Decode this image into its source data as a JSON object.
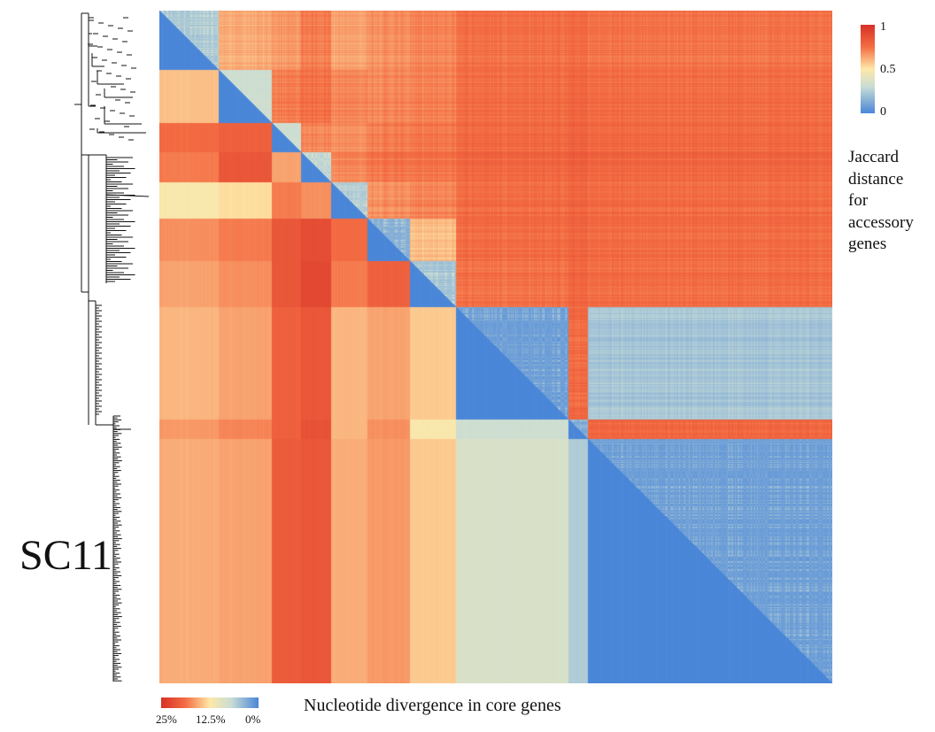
{
  "chart_data": {
    "type": "heatmap",
    "title": "",
    "clade_label": "SC11",
    "upper_triangle": {
      "metric": "Jaccard distance for accessory genes",
      "legend_title_lines": [
        "Jaccard",
        "distance",
        "for",
        "accessory",
        "genes"
      ],
      "legend_ticks": [
        "1",
        "0.5",
        "0"
      ],
      "range": [
        0,
        1
      ]
    },
    "lower_triangle": {
      "metric": "Nucleotide divergence in core genes",
      "legend_title": "Nucleotide divergence in core genes",
      "legend_ticks": [
        "25%",
        "12.5%",
        "0%"
      ],
      "range": [
        0,
        25
      ]
    },
    "clusters": [
      {
        "size": 0.09,
        "core_div": [
          0,
          14.5,
          19,
          18,
          12,
          17,
          16,
          15,
          16.5,
          15.5
        ],
        "acc_dist": [
          0.2,
          0.62,
          0.66,
          0.72,
          0.64,
          0.68,
          0.7,
          0.75,
          0.76,
          0.74
        ]
      },
      {
        "size": 0.08,
        "core_div": [
          14.5,
          0,
          20,
          21,
          13,
          18,
          17,
          16,
          17.5,
          16
        ],
        "acc_dist": [
          0.62,
          0.3,
          0.72,
          0.75,
          0.7,
          0.7,
          0.71,
          0.76,
          0.78,
          0.76
        ]
      },
      {
        "size": 0.045,
        "core_div": [
          19,
          20,
          0,
          16,
          18,
          21,
          21,
          20,
          20,
          20.5
        ],
        "acc_dist": [
          0.66,
          0.72,
          0.3,
          0.7,
          0.68,
          0.72,
          0.73,
          0.77,
          0.79,
          0.77
        ]
      },
      {
        "size": 0.045,
        "core_div": [
          18,
          21,
          16,
          0,
          17,
          22,
          22.5,
          21,
          21.5,
          21
        ],
        "acc_dist": [
          0.72,
          0.75,
          0.7,
          0.25,
          0.7,
          0.74,
          0.74,
          0.78,
          0.8,
          0.78
        ]
      },
      {
        "size": 0.055,
        "core_div": [
          12,
          13,
          18,
          17,
          0,
          19,
          18,
          15,
          15,
          15.5
        ],
        "acc_dist": [
          0.64,
          0.7,
          0.68,
          0.7,
          0.22,
          0.68,
          0.7,
          0.76,
          0.78,
          0.76
        ]
      },
      {
        "size": 0.065,
        "core_div": [
          17,
          18,
          21,
          22,
          19,
          0,
          20,
          16,
          17,
          16.5
        ],
        "acc_dist": [
          0.68,
          0.7,
          0.72,
          0.74,
          0.68,
          0.12,
          0.58,
          0.76,
          0.78,
          0.76
        ]
      },
      {
        "size": 0.07,
        "core_div": [
          16,
          17,
          21,
          22.5,
          18,
          20,
          0,
          14,
          12,
          14
        ],
        "acc_dist": [
          0.7,
          0.71,
          0.73,
          0.74,
          0.7,
          0.58,
          0.18,
          0.74,
          0.77,
          0.75
        ]
      },
      {
        "size": 0.17,
        "core_div": [
          15,
          16,
          20,
          21,
          15,
          16,
          14,
          0,
          8,
          9
        ],
        "acc_dist": [
          0.75,
          0.76,
          0.77,
          0.78,
          0.76,
          0.76,
          0.74,
          0.06,
          0.76,
          0.22
        ]
      },
      {
        "size": 0.03,
        "core_div": [
          16.5,
          17.5,
          20,
          21.5,
          15,
          17,
          12,
          8,
          0,
          6
        ],
        "acc_dist": [
          0.76,
          0.78,
          0.79,
          0.8,
          0.78,
          0.78,
          0.77,
          0.76,
          0.1,
          0.78
        ]
      },
      {
        "size": 0.37,
        "core_div": [
          15.5,
          16,
          20.5,
          21,
          15.5,
          16.5,
          14,
          9,
          6,
          0
        ],
        "acc_dist": [
          0.74,
          0.76,
          0.77,
          0.78,
          0.76,
          0.76,
          0.75,
          0.22,
          0.78,
          0.06
        ]
      }
    ],
    "colors": {
      "high": "#d73027",
      "mid": "#fee8a8",
      "low": "#4a86d8"
    },
    "grid": false,
    "legend_placement": "top-right and bottom-left"
  }
}
